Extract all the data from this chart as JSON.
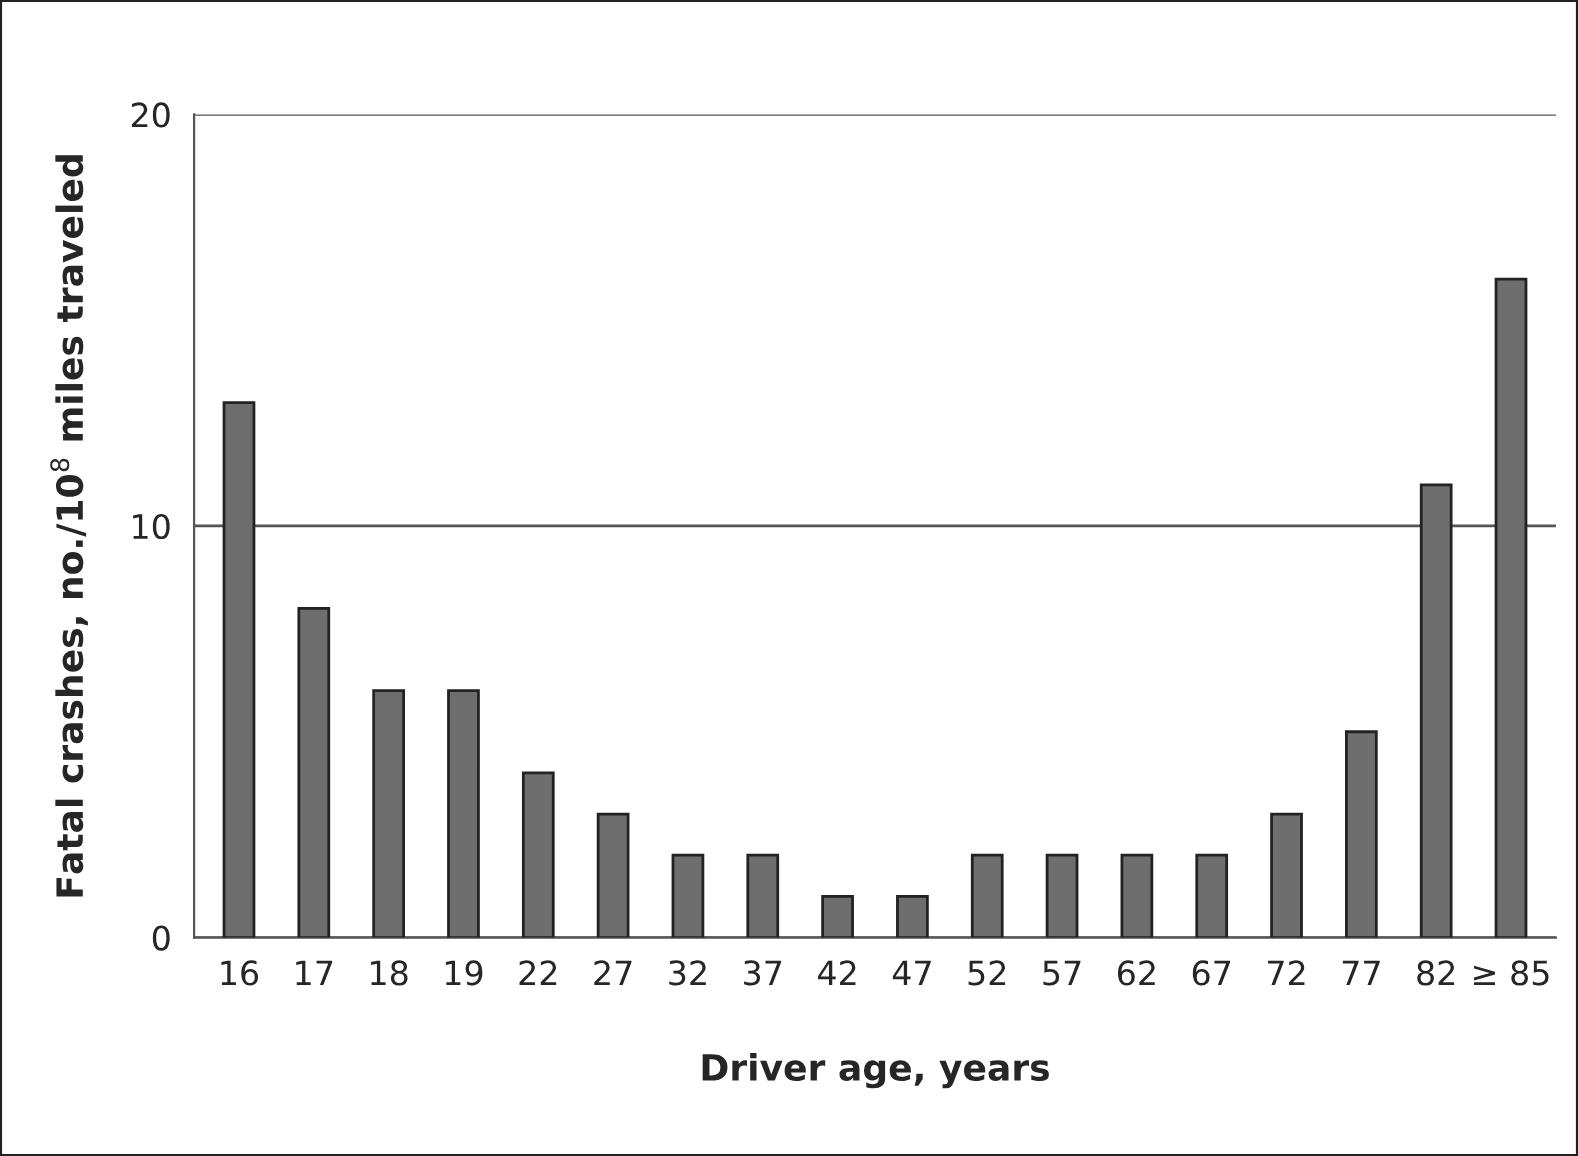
{
  "chart_data": {
    "type": "bar",
    "xlabel": "Driver age, years",
    "ylabel": "Fatal crashes, no./10$^{8}$ miles traveled",
    "categories": [
      "16",
      "17",
      "18",
      "19",
      "22",
      "27",
      "32",
      "37",
      "42",
      "47",
      "52",
      "57",
      "62",
      "67",
      "72",
      "77",
      "82",
      "≥ 85"
    ],
    "values": [
      13,
      8,
      6,
      6,
      4,
      3,
      2,
      2,
      1,
      1,
      2,
      2,
      2,
      2,
      3,
      5,
      11,
      16
    ],
    "color": "#6e6e6e",
    "ylim": [
      0,
      20
    ],
    "yticks": [
      0,
      10,
      20
    ],
    "grid": "y",
    "legend": false
  }
}
